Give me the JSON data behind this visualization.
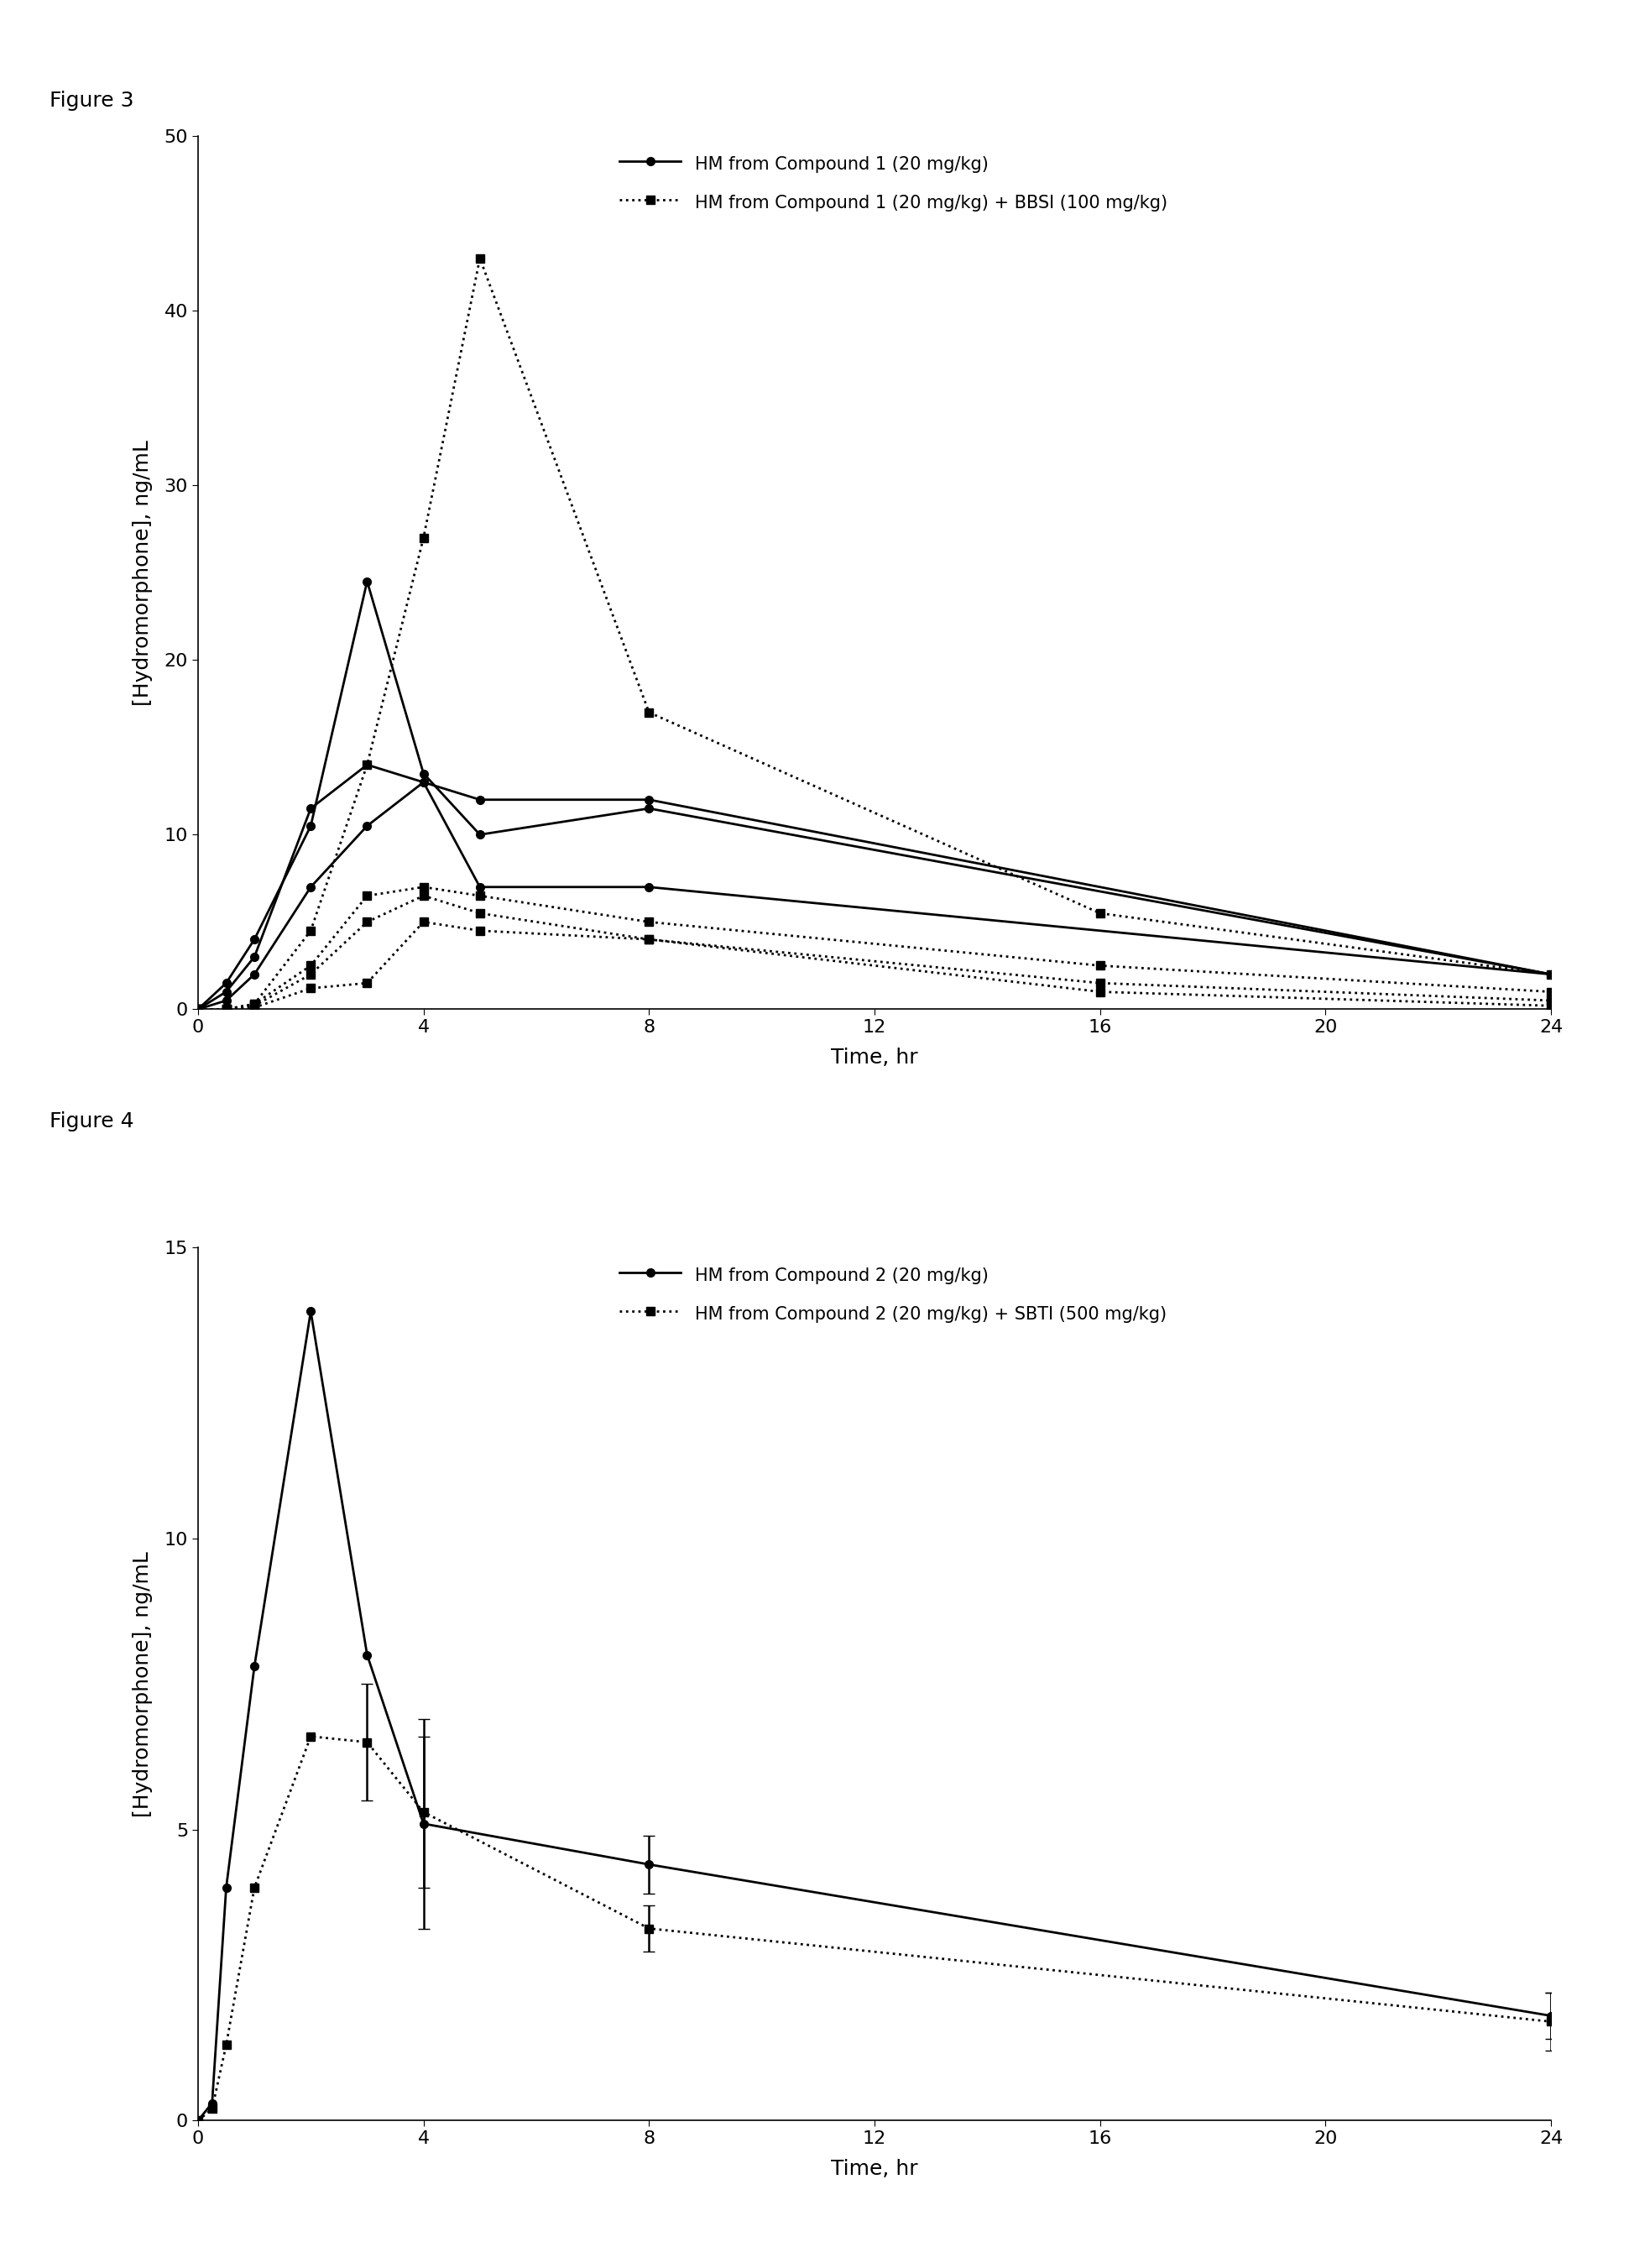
{
  "fig3": {
    "title": "Figure 3",
    "ylabel": "[Hydromorphone], ng/mL",
    "xlabel": "Time, hr",
    "ylim": [
      0,
      50
    ],
    "yticks": [
      0,
      10,
      20,
      30,
      40,
      50
    ],
    "xlim": [
      0,
      24
    ],
    "xticks": [
      0,
      4,
      8,
      12,
      16,
      20,
      24
    ],
    "legend1": "HM from Compound 1 (20 mg/kg)",
    "legend2": "HM from Compound 1 (20 mg/kg) + BBSI (100 mg/kg)",
    "solid_lines": [
      {
        "x": [
          0,
          0.5,
          1,
          2,
          3,
          4,
          5,
          8,
          24
        ],
        "y": [
          0,
          1.5,
          4.0,
          10.5,
          24.5,
          13.5,
          10.0,
          11.5,
          2.0
        ]
      },
      {
        "x": [
          0,
          0.5,
          1,
          2,
          3,
          4,
          5,
          8,
          24
        ],
        "y": [
          0,
          1.0,
          3.0,
          11.5,
          14.0,
          13.0,
          7.0,
          7.0,
          2.0
        ]
      },
      {
        "x": [
          0,
          0.5,
          1,
          2,
          3,
          4,
          5,
          8,
          24
        ],
        "y": [
          0,
          0.5,
          2.0,
          7.0,
          10.5,
          13.0,
          12.0,
          12.0,
          2.0
        ]
      }
    ],
    "dotted_lines": [
      {
        "x": [
          0,
          0.5,
          1,
          2,
          3,
          4,
          5,
          8,
          16,
          24
        ],
        "y": [
          0,
          0.0,
          0.3,
          4.5,
          14.0,
          27.0,
          43.0,
          17.0,
          5.5,
          2.0
        ]
      },
      {
        "x": [
          0,
          0.5,
          1,
          2,
          3,
          4,
          5,
          8,
          16,
          24
        ],
        "y": [
          0,
          0.0,
          0.3,
          2.5,
          6.5,
          7.0,
          6.5,
          5.0,
          2.5,
          1.0
        ]
      },
      {
        "x": [
          0,
          0.5,
          1,
          2,
          3,
          4,
          5,
          8,
          16,
          24
        ],
        "y": [
          0,
          0.0,
          0.2,
          2.0,
          5.0,
          6.5,
          5.5,
          4.0,
          1.5,
          0.5
        ]
      },
      {
        "x": [
          0,
          0.5,
          1,
          2,
          3,
          4,
          5,
          8,
          16,
          24
        ],
        "y": [
          0,
          0.0,
          0.1,
          1.2,
          1.5,
          5.0,
          4.5,
          4.0,
          1.0,
          0.2
        ]
      }
    ]
  },
  "fig4": {
    "title": "Figure 4",
    "ylabel": "[Hydromorphone], ng/mL",
    "xlabel": "Time, hr",
    "ylim": [
      0,
      15
    ],
    "yticks": [
      0,
      5,
      10,
      15
    ],
    "xlim": [
      0,
      24
    ],
    "xticks": [
      0,
      4,
      8,
      12,
      16,
      20,
      24
    ],
    "legend1": "HM from Compound 2 (20 mg/kg)",
    "legend2": "HM from Compound 2 (20 mg/kg) + SBTI (500 mg/kg)",
    "solid_x": [
      0,
      0.25,
      0.5,
      1.0,
      2.0,
      3.0,
      4.0,
      8.0,
      24.0
    ],
    "solid_y": [
      0,
      0.3,
      4.0,
      7.8,
      13.9,
      8.0,
      5.1,
      4.4,
      1.8
    ],
    "solid_yerr": [
      null,
      null,
      null,
      null,
      null,
      null,
      1.8,
      0.5,
      0.4
    ],
    "dotted_x": [
      0,
      0.25,
      0.5,
      1.0,
      2.0,
      3.0,
      4.0,
      8.0,
      24.0
    ],
    "dotted_y": [
      0,
      0.2,
      1.3,
      4.0,
      6.6,
      6.5,
      5.3,
      3.3,
      1.7
    ],
    "dotted_yerr": [
      null,
      null,
      null,
      null,
      null,
      1.0,
      1.3,
      0.4,
      0.5
    ]
  }
}
